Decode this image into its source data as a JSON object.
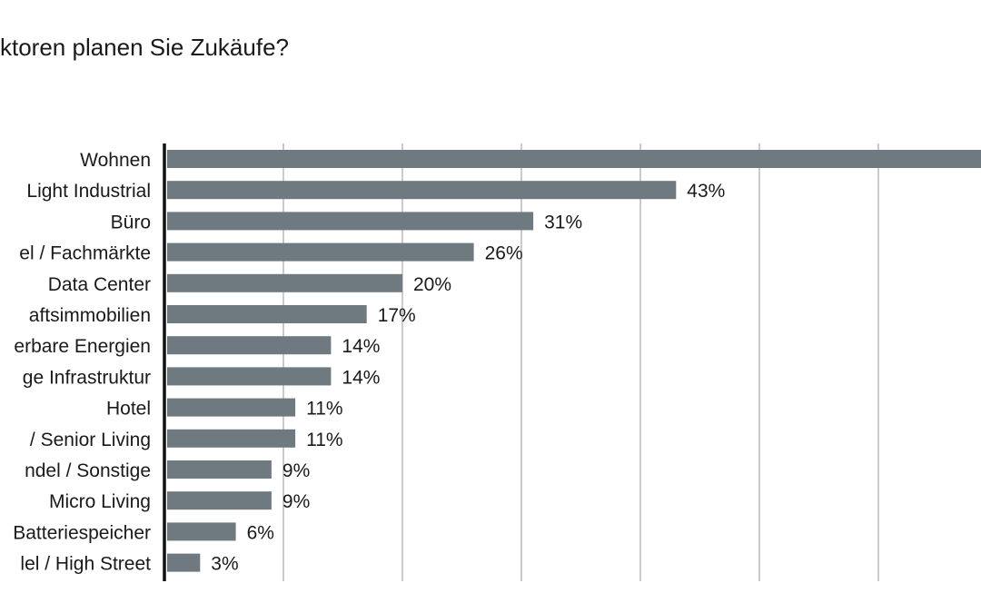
{
  "chart_data": {
    "type": "bar",
    "orientation": "horizontal",
    "title": "ktoren planen Sie Zukäufe?",
    "categories": [
      "Wohnen",
      "Light Industrial",
      "Büro",
      "el / Fachmärkte",
      "Data Center",
      "aftsimmobilien",
      "erbare Energien",
      "ge Infrastruktur",
      "Hotel",
      "/ Senior Living",
      "ndel / Sonstige",
      "Micro Living",
      "Batteriespeicher",
      "lel / High Street"
    ],
    "values": [
      69,
      43,
      31,
      26,
      20,
      17,
      14,
      14,
      11,
      11,
      9,
      9,
      6,
      3
    ],
    "value_labels": [
      "",
      "43%",
      "31%",
      "26%",
      "20%",
      "17%",
      "14%",
      "14%",
      "11%",
      "11%",
      "9%",
      "9%",
      "6%",
      "3%"
    ],
    "xlim": [
      0,
      70
    ],
    "grid": true,
    "gridline_step": 10,
    "bar_color": "#6e7a80",
    "gridline_color": "#a8a8a8",
    "axis_color": "#111111"
  }
}
